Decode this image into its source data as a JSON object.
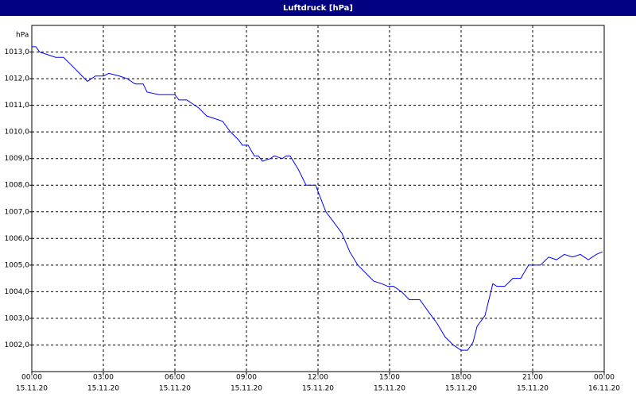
{
  "chart_data": {
    "type": "line",
    "title": "Luftdruck [hPa]",
    "y_label": "hPa",
    "xlim": [
      0,
      24
    ],
    "ylim": [
      1001,
      1014
    ],
    "xticks": [
      {
        "value": 0,
        "label": "00:00",
        "date": "15.11.20"
      },
      {
        "value": 3,
        "label": "03:00",
        "date": "15.11.20"
      },
      {
        "value": 6,
        "label": "06:00",
        "date": "15.11.20"
      },
      {
        "value": 9,
        "label": "09:00",
        "date": "15.11.20"
      },
      {
        "value": 12,
        "label": "12:00",
        "date": "15.11.20"
      },
      {
        "value": 15,
        "label": "15:00",
        "date": "15.11.20"
      },
      {
        "value": 18,
        "label": "18:00",
        "date": "15.11.20"
      },
      {
        "value": 21,
        "label": "21:00",
        "date": "15.11.20"
      },
      {
        "value": 24,
        "label": "00:00",
        "date": "16.11.20"
      }
    ],
    "yticks": [
      {
        "value": 1002,
        "label": "1002,0"
      },
      {
        "value": 1003,
        "label": "1003,0"
      },
      {
        "value": 1004,
        "label": "1004,0"
      },
      {
        "value": 1005,
        "label": "1005,0"
      },
      {
        "value": 1006,
        "label": "1006,0"
      },
      {
        "value": 1007,
        "label": "1007,0"
      },
      {
        "value": 1008,
        "label": "1008,0"
      },
      {
        "value": 1009,
        "label": "1009,0"
      },
      {
        "value": 1010,
        "label": "1010,0"
      },
      {
        "value": 1011,
        "label": "1011,0"
      },
      {
        "value": 1012,
        "label": "1012,0"
      },
      {
        "value": 1013,
        "label": "1013,0"
      }
    ],
    "grid": true,
    "x": [
      0,
      0.17,
      0.33,
      0.67,
      1,
      1.33,
      1.67,
      2,
      2.33,
      2.67,
      3,
      3.23,
      3.67,
      4,
      4.33,
      4.67,
      4.83,
      5.33,
      6,
      6.17,
      6.5,
      7,
      7.33,
      7.67,
      8,
      8.33,
      8.67,
      8.83,
      9.07,
      9.33,
      9.5,
      9.67,
      10,
      10.17,
      10.5,
      10.67,
      10.83,
      11.17,
      11.5,
      11.9,
      12.33,
      12.67,
      13,
      13.33,
      13.67,
      14,
      14.33,
      14.67,
      14.93,
      15.17,
      15.5,
      15.83,
      16.27,
      16.67,
      17,
      17.33,
      17.67,
      18,
      18.27,
      18.5,
      18.67,
      19,
      19.33,
      19.5,
      19.83,
      20.17,
      20.5,
      20.83,
      21.33,
      21.67,
      22,
      22.33,
      22.67,
      23,
      23.33,
      23.67,
      23.93
    ],
    "series": [
      {
        "name": "Luftdruck",
        "color": "#0000ff",
        "values": [
          1013.2,
          1013.2,
          1013.0,
          1012.9,
          1012.8,
          1012.8,
          1012.5,
          1012.2,
          1011.9,
          1012.1,
          1012.1,
          1012.2,
          1012.1,
          1012.0,
          1011.8,
          1011.8,
          1011.5,
          1011.4,
          1011.4,
          1011.2,
          1011.2,
          1010.9,
          1010.6,
          1010.5,
          1010.4,
          1010.0,
          1009.7,
          1009.5,
          1009.5,
          1009.1,
          1009.1,
          1008.9,
          1009.0,
          1009.1,
          1009.0,
          1009.1,
          1009.1,
          1008.6,
          1008.0,
          1008.0,
          1007.0,
          1006.6,
          1006.2,
          1005.5,
          1005.0,
          1004.7,
          1004.4,
          1004.3,
          1004.2,
          1004.2,
          1004.0,
          1003.7,
          1003.7,
          1003.2,
          1002.8,
          1002.3,
          1002.0,
          1001.8,
          1001.8,
          1002.1,
          1002.7,
          1003.1,
          1004.3,
          1004.2,
          1004.2,
          1004.5,
          1004.5,
          1005.0,
          1005.0,
          1005.3,
          1005.2,
          1005.4,
          1005.3,
          1005.4,
          1005.2,
          1005.4,
          1005.5
        ]
      }
    ]
  }
}
